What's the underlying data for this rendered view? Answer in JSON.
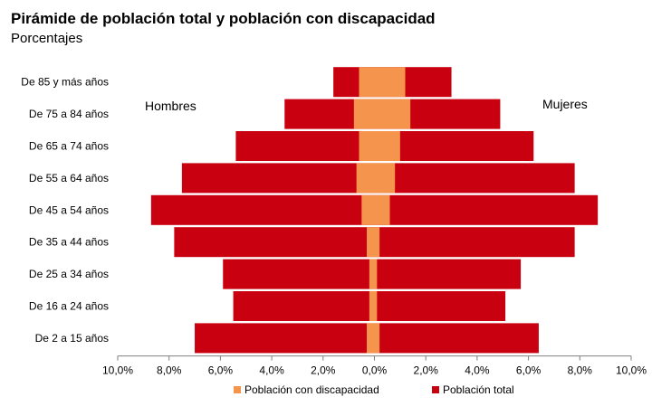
{
  "colors": {
    "total": "#c8000f",
    "disability": "#f5944c",
    "axis": "#7f7f7f"
  },
  "chart_data": {
    "type": "bar",
    "orientation": "horizontal",
    "layout": "population-pyramid",
    "title": "Pirámide de población total y población con discapacidad",
    "subtitle": "Porcentajes",
    "categories": [
      "De 85 y más años",
      "De 75 a 84 años",
      "De 65 a 74 años",
      "De 55 a 64 años",
      "De 45 a 54 años",
      "De 35 a 44 años",
      "De 25 a 34 años",
      "De 16 a 24 años",
      "De 2 a 15 años"
    ],
    "annotations": {
      "left": "Hombres",
      "right": "Mujeres"
    },
    "xticks": [
      "10,0%",
      "8,0%",
      "6,0%",
      "4,0%",
      "2,0%",
      "0,0%",
      "2,0%",
      "4,0%",
      "6,0%",
      "8,0%",
      "10,0%"
    ],
    "xlim": [
      -10,
      10
    ],
    "series": [
      {
        "name": "Población total",
        "men": [
          1.6,
          3.5,
          5.4,
          7.5,
          8.7,
          7.8,
          5.9,
          5.5,
          7.0
        ],
        "women": [
          3.0,
          4.9,
          6.2,
          7.8,
          8.7,
          7.8,
          5.7,
          5.1,
          6.4
        ]
      },
      {
        "name": "Población con discapacidad",
        "men": [
          0.6,
          0.8,
          0.6,
          0.7,
          0.5,
          0.3,
          0.2,
          0.2,
          0.3
        ],
        "women": [
          1.2,
          1.4,
          1.0,
          0.8,
          0.6,
          0.2,
          0.1,
          0.1,
          0.2
        ]
      }
    ],
    "legend": [
      {
        "label": "Población con discapacidad",
        "series": "Población con discapacidad"
      },
      {
        "label": "Población total",
        "series": "Población total"
      }
    ],
    "legend_position": "bottom"
  }
}
